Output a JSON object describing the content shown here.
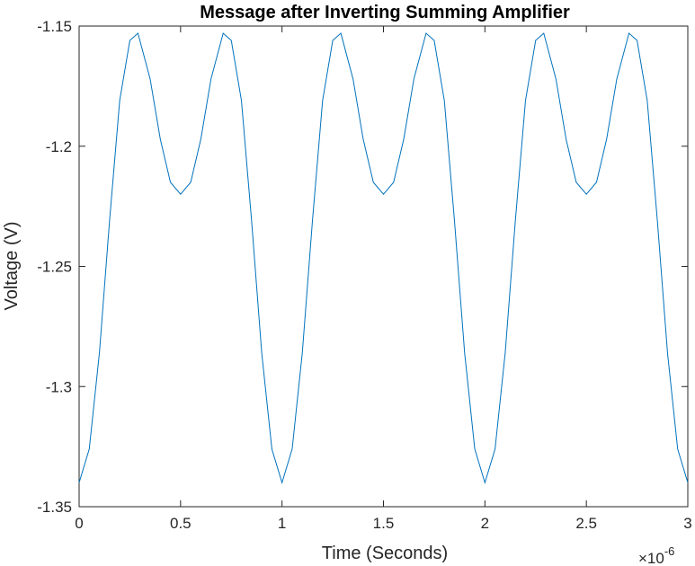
{
  "chart_data": {
    "type": "line",
    "title": "Message after Inverting Summing Amplifier",
    "xlabel": "Time (Seconds)",
    "ylabel": "Voltage (V)",
    "x_exponent_label": "×10",
    "x_exponent_power": "-6",
    "xlim": [
      0,
      3
    ],
    "ylim": [
      -1.35,
      -1.15
    ],
    "x_ticks": [
      0,
      0.5,
      1,
      1.5,
      2,
      2.5,
      3
    ],
    "x_tick_labels": [
      "0",
      "0.5",
      "1",
      "1.5",
      "2",
      "2.5",
      "3"
    ],
    "y_ticks": [
      -1.35,
      -1.3,
      -1.25,
      -1.2,
      -1.15
    ],
    "y_tick_labels": [
      "-1.35",
      "-1.3",
      "-1.25",
      "-1.2",
      "-1.15"
    ],
    "grid": false,
    "series": [
      {
        "color": "#0072BD",
        "x": [
          0,
          0.05,
          0.1,
          0.15,
          0.2,
          0.25,
          0.29,
          0.35,
          0.4,
          0.45,
          0.5,
          0.55,
          0.6,
          0.65,
          0.71,
          0.75,
          0.8,
          0.85,
          0.9,
          0.95,
          1.0,
          1.05,
          1.1,
          1.15,
          1.2,
          1.25,
          1.29,
          1.35,
          1.4,
          1.45,
          1.5,
          1.55,
          1.6,
          1.65,
          1.71,
          1.75,
          1.8,
          1.85,
          1.9,
          1.95,
          2.0,
          2.05,
          2.1,
          2.15,
          2.2,
          2.25,
          2.29,
          2.35,
          2.4,
          2.45,
          2.5,
          2.55,
          2.6,
          2.65,
          2.71,
          2.75,
          2.8,
          2.85,
          2.9,
          2.95,
          3.0
        ],
        "y": [
          -1.34,
          -1.326,
          -1.286,
          -1.231,
          -1.181,
          -1.156,
          -1.153,
          -1.172,
          -1.197,
          -1.215,
          -1.22,
          -1.215,
          -1.197,
          -1.172,
          -1.153,
          -1.156,
          -1.181,
          -1.231,
          -1.286,
          -1.326,
          -1.34,
          -1.326,
          -1.286,
          -1.231,
          -1.181,
          -1.156,
          -1.153,
          -1.172,
          -1.197,
          -1.215,
          -1.22,
          -1.215,
          -1.197,
          -1.172,
          -1.153,
          -1.156,
          -1.181,
          -1.231,
          -1.286,
          -1.326,
          -1.34,
          -1.326,
          -1.286,
          -1.231,
          -1.181,
          -1.156,
          -1.153,
          -1.172,
          -1.197,
          -1.215,
          -1.22,
          -1.215,
          -1.197,
          -1.172,
          -1.153,
          -1.156,
          -1.181,
          -1.231,
          -1.286,
          -1.326,
          -1.34
        ]
      }
    ]
  }
}
